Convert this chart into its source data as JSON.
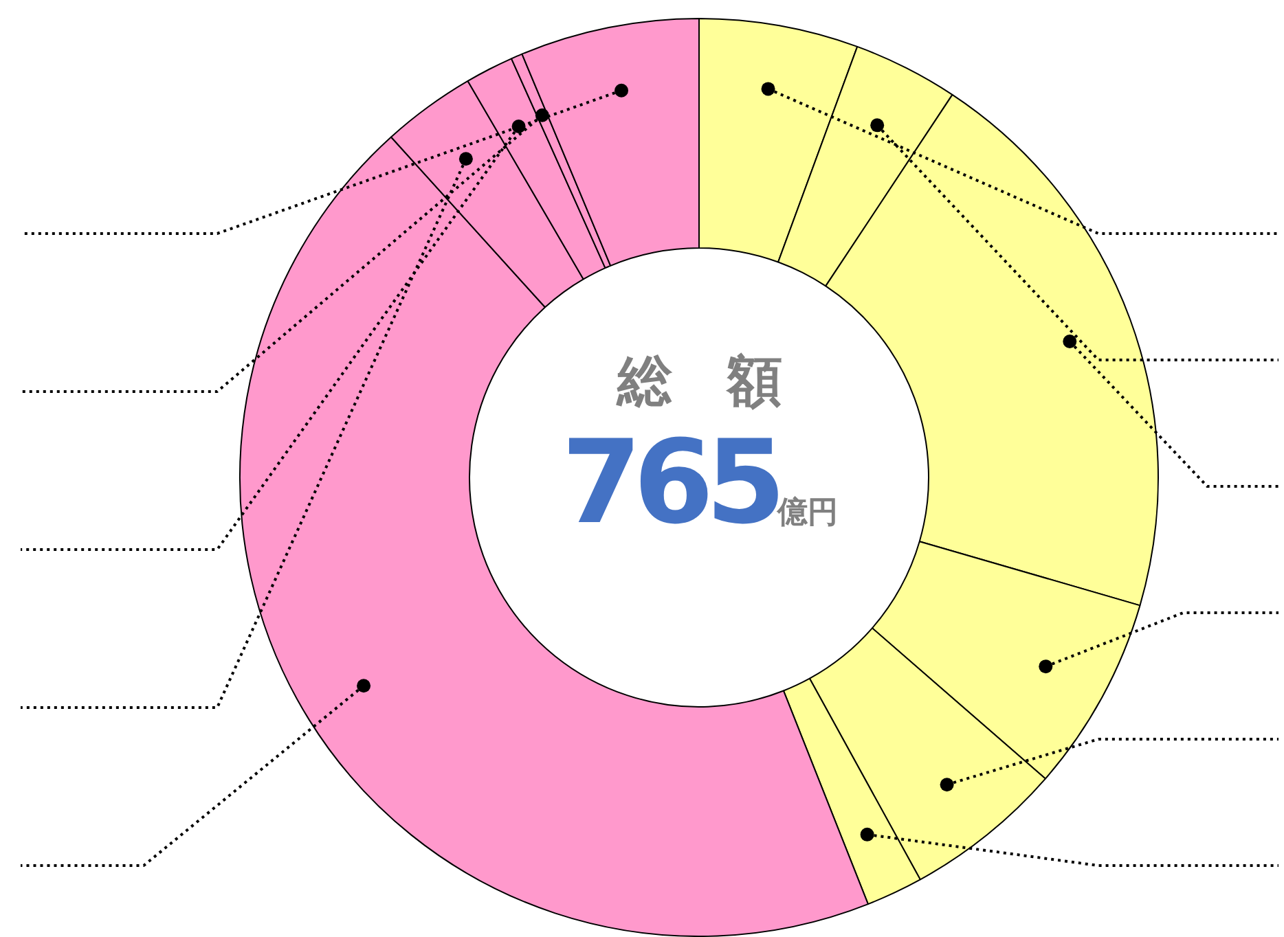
{
  "chart_data": {
    "type": "donut",
    "categories": [
      null,
      null,
      null,
      null,
      null,
      null,
      null,
      null,
      null,
      null,
      null
    ],
    "values": [
      5.6,
      3.7,
      20.2,
      6.9,
      5.6,
      2.0,
      44.3,
      3.3,
      1.7,
      0.4,
      6.3
    ],
    "colors": [
      "#ffff99",
      "#ffff99",
      "#ffff99",
      "#ffff99",
      "#ffff99",
      "#ffff99",
      "#ff99cc",
      "#ff99cc",
      "#ff99cc",
      "#ff99cc",
      "#ff99cc"
    ],
    "annotations": [
      "総　額",
      "765億円"
    ],
    "legend": false
  }
}
